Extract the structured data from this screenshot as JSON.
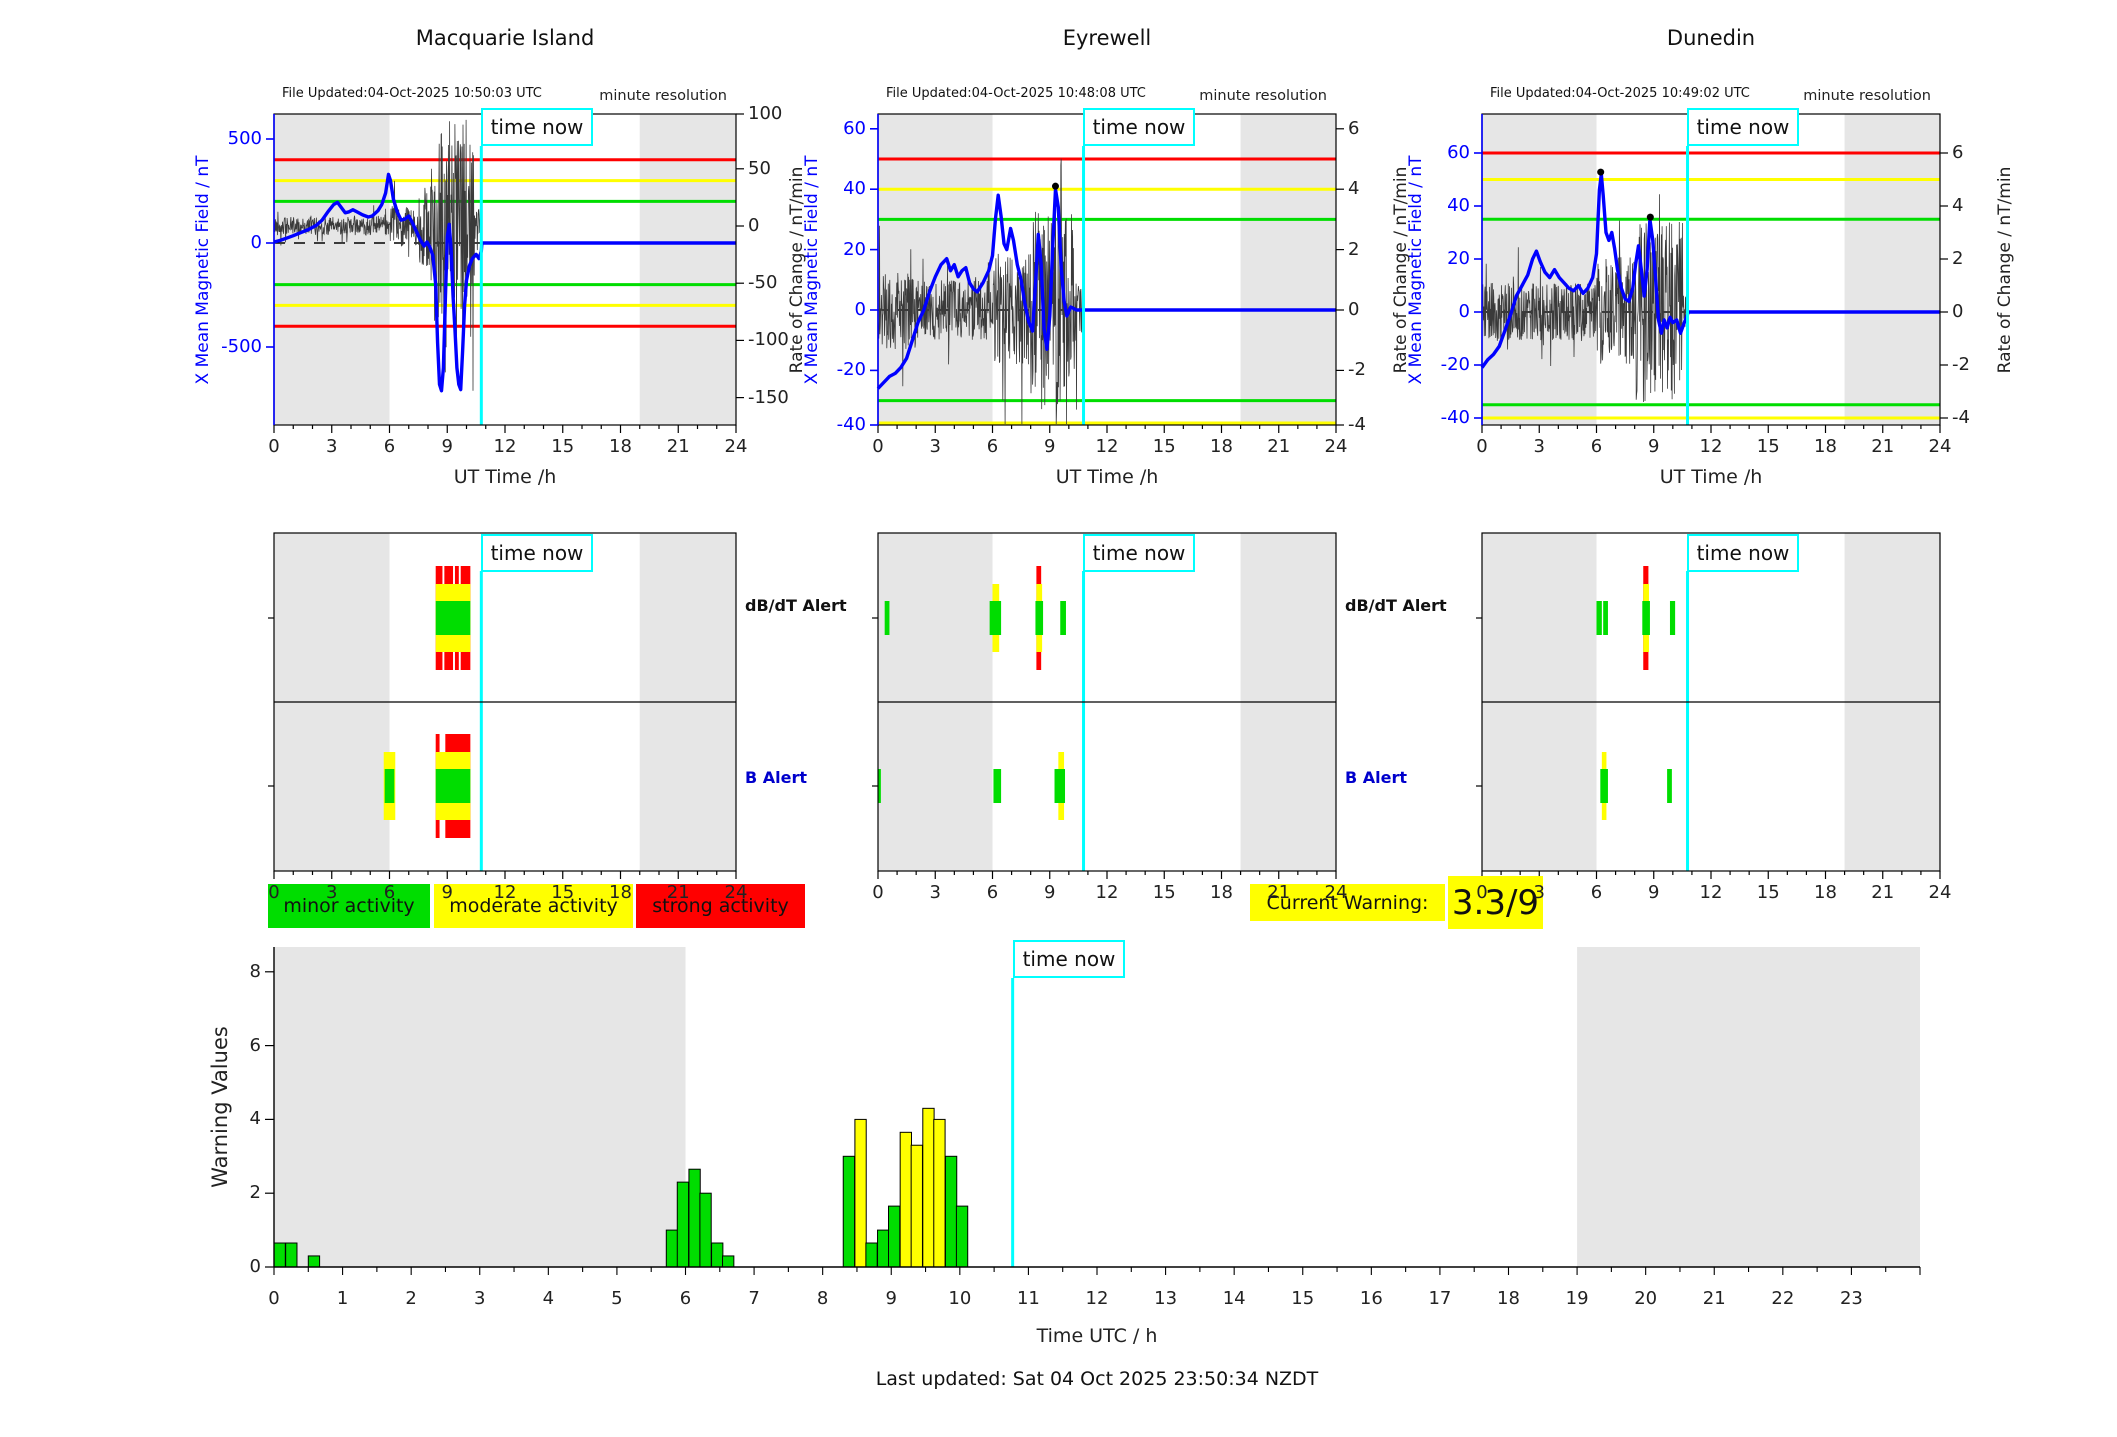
{
  "ui": {
    "time_now": "time now",
    "dbdt_label": "dB/dT Alert",
    "b_label": "B Alert",
    "legend": [
      {
        "label": "minor activity",
        "color": "green"
      },
      {
        "label": "moderate activity",
        "color": "yellow"
      },
      {
        "label": "strong activity",
        "color": "red"
      }
    ],
    "current_warning": {
      "label": "Current Warning:",
      "value": "3.3/9"
    },
    "last_updated": "Last updated: Sat 04 Oct 2025 23:50:34 NZDT"
  },
  "colors": {
    "green": "#00dd00",
    "yellow": "#ffff00",
    "red": "#ff0000",
    "blue": "#0000ff",
    "cyan": "#00ffff",
    "gray": "#e6e6e6",
    "noise": "#3a3a3a"
  },
  "chart_data": [
    {
      "type": "line",
      "title": "Macquarie Island",
      "file_updated": "File Updated:04-Oct-2025 10:50:03 UTC",
      "note": "minute resolution",
      "xlabel": "UT Time /h",
      "ylabel_left": "X Mean Magnetic Field / nT",
      "ylabel_right": "Rate of Change / nT/min",
      "xticks": [
        0,
        3,
        6,
        9,
        12,
        15,
        18,
        21,
        24
      ],
      "left_ticks": [
        500,
        0,
        -500
      ],
      "right_ticks": [
        100,
        50,
        0,
        -50,
        -100,
        -150
      ],
      "thresholds": [
        {
          "value": 400,
          "color": "red"
        },
        {
          "value": 300,
          "color": "yellow"
        },
        {
          "value": 200,
          "color": "green"
        },
        {
          "value": -200,
          "color": "green"
        },
        {
          "value": -300,
          "color": "yellow"
        },
        {
          "value": -400,
          "color": "red"
        }
      ],
      "gray_bands": [
        [
          0,
          6
        ],
        [
          19,
          24
        ]
      ],
      "time_now": 10.77,
      "series": [
        [
          0,
          5
        ],
        [
          0.3,
          12
        ],
        [
          0.7,
          25
        ],
        [
          1,
          35
        ],
        [
          1.4,
          50
        ],
        [
          1.8,
          65
        ],
        [
          2.2,
          85
        ],
        [
          2.5,
          110
        ],
        [
          2.8,
          150
        ],
        [
          3.1,
          185
        ],
        [
          3.3,
          195
        ],
        [
          3.5,
          170
        ],
        [
          3.7,
          145
        ],
        [
          3.9,
          150
        ],
        [
          4.1,
          160
        ],
        [
          4.3,
          150
        ],
        [
          4.6,
          135
        ],
        [
          4.9,
          125
        ],
        [
          5.1,
          130
        ],
        [
          5.4,
          155
        ],
        [
          5.6,
          185
        ],
        [
          5.8,
          240
        ],
        [
          5.95,
          330
        ],
        [
          6.05,
          300
        ],
        [
          6.2,
          210
        ],
        [
          6.4,
          150
        ],
        [
          6.6,
          110
        ],
        [
          6.8,
          115
        ],
        [
          7,
          130
        ],
        [
          7.2,
          95
        ],
        [
          7.4,
          55
        ],
        [
          7.6,
          15
        ],
        [
          7.8,
          -15
        ],
        [
          7.95,
          5
        ],
        [
          8.1,
          -20
        ],
        [
          8.25,
          -60
        ],
        [
          8.4,
          -200
        ],
        [
          8.5,
          -480
        ],
        [
          8.6,
          -680
        ],
        [
          8.7,
          -710
        ],
        [
          8.8,
          -600
        ],
        [
          8.9,
          -280
        ],
        [
          9,
          30
        ],
        [
          9.1,
          90
        ],
        [
          9.2,
          -30
        ],
        [
          9.3,
          -250
        ],
        [
          9.4,
          -420
        ],
        [
          9.5,
          -600
        ],
        [
          9.6,
          -680
        ],
        [
          9.7,
          -705
        ],
        [
          9.8,
          -520
        ],
        [
          9.9,
          -300
        ],
        [
          10,
          -180
        ],
        [
          10.15,
          -110
        ],
        [
          10.3,
          -75
        ],
        [
          10.5,
          -55
        ],
        [
          10.65,
          -75
        ],
        [
          10.77,
          -40
        ],
        [
          10.8,
          0
        ],
        [
          24,
          0
        ]
      ],
      "noise_env": [
        [
          0,
          6,
          8
        ],
        [
          6,
          7.5,
          18
        ],
        [
          7.5,
          8.3,
          35
        ],
        [
          8.3,
          10.4,
          95
        ],
        [
          10.4,
          10.77,
          15
        ]
      ],
      "dots": [],
      "alerts": {
        "dbdt": {
          "red": [
            [
              8.4,
              8.75
            ],
            [
              8.85,
              9.3
            ],
            [
              9.4,
              9.6
            ],
            [
              9.7,
              10.2
            ]
          ],
          "yellow": [
            [
              8.4,
              10.2
            ]
          ],
          "green": [
            [
              8.4,
              10.2
            ]
          ]
        },
        "b": {
          "red": [
            [
              8.4,
              8.6
            ],
            [
              8.9,
              10.2
            ]
          ],
          "yellow": [
            [
              5.7,
              6.3
            ],
            [
              8.4,
              10.2
            ]
          ],
          "green": [
            [
              5.75,
              6.25
            ],
            [
              8.4,
              10.2
            ]
          ]
        }
      }
    },
    {
      "type": "line",
      "title": "Eyrewell",
      "file_updated": "File Updated:04-Oct-2025 10:48:08 UTC",
      "note": "minute resolution",
      "xlabel": "UT Time /h",
      "ylabel_left": "X Mean Magnetic Field / nT",
      "ylabel_right": "Rate of Change / nT/min",
      "xticks": [
        0,
        3,
        6,
        9,
        12,
        15,
        18,
        21,
        24
      ],
      "left_ticks": [
        60,
        40,
        20,
        0,
        -20,
        -40
      ],
      "right_ticks": [
        6,
        4,
        2,
        0,
        -2,
        -4
      ],
      "thresholds": [
        {
          "value": 50,
          "color": "red"
        },
        {
          "value": 40,
          "color": "yellow"
        },
        {
          "value": 30,
          "color": "green"
        },
        {
          "value": -30,
          "color": "green"
        },
        {
          "value": -40,
          "color": "yellow"
        }
      ],
      "gray_bands": [
        [
          0,
          6
        ],
        [
          19,
          24
        ]
      ],
      "time_now": 10.77,
      "series": [
        [
          0,
          -26
        ],
        [
          0.3,
          -24
        ],
        [
          0.6,
          -22
        ],
        [
          0.9,
          -21
        ],
        [
          1.2,
          -19
        ],
        [
          1.5,
          -16
        ],
        [
          1.8,
          -10
        ],
        [
          2.1,
          -4
        ],
        [
          2.4,
          0
        ],
        [
          2.7,
          6
        ],
        [
          3,
          11
        ],
        [
          3.3,
          15
        ],
        [
          3.6,
          17
        ],
        [
          3.8,
          13
        ],
        [
          4,
          15
        ],
        [
          4.2,
          11
        ],
        [
          4.4,
          13
        ],
        [
          4.6,
          14
        ],
        [
          4.8,
          9
        ],
        [
          5,
          7
        ],
        [
          5.2,
          6
        ],
        [
          5.5,
          9
        ],
        [
          5.8,
          13
        ],
        [
          6,
          18
        ],
        [
          6.15,
          30
        ],
        [
          6.3,
          38
        ],
        [
          6.45,
          31
        ],
        [
          6.6,
          22
        ],
        [
          6.75,
          20
        ],
        [
          6.95,
          27
        ],
        [
          7.1,
          23
        ],
        [
          7.3,
          15
        ],
        [
          7.5,
          10
        ],
        [
          7.7,
          2
        ],
        [
          7.9,
          -4
        ],
        [
          8.1,
          -7
        ],
        [
          8.25,
          8
        ],
        [
          8.4,
          25
        ],
        [
          8.55,
          15
        ],
        [
          8.7,
          -6
        ],
        [
          8.85,
          -13
        ],
        [
          9,
          -2
        ],
        [
          9.15,
          20
        ],
        [
          9.3,
          40
        ],
        [
          9.45,
          34
        ],
        [
          9.6,
          14
        ],
        [
          9.75,
          3
        ],
        [
          9.9,
          -2
        ],
        [
          10.1,
          1
        ],
        [
          10.4,
          0
        ],
        [
          24,
          0
        ]
      ],
      "noise_env": [
        [
          0,
          2,
          1.3
        ],
        [
          2,
          6,
          1.0
        ],
        [
          6,
          8,
          1.9
        ],
        [
          8,
          10.4,
          3.3
        ],
        [
          10.4,
          10.77,
          0.8
        ]
      ],
      "dots": [
        [
          9.3,
          41
        ]
      ],
      "alerts": {
        "dbdt": {
          "red": [
            [
              8.3,
              8.55
            ]
          ],
          "yellow": [
            [
              6.0,
              6.35
            ],
            [
              8.3,
              8.6
            ]
          ],
          "green": [
            [
              0.35,
              0.6
            ],
            [
              5.85,
              6.45
            ],
            [
              8.25,
              8.65
            ],
            [
              9.55,
              9.85
            ]
          ]
        },
        "b": {
          "red": [],
          "yellow": [
            [
              9.45,
              9.75
            ]
          ],
          "green": [
            [
              0.0,
              0.15
            ],
            [
              6.05,
              6.45
            ],
            [
              9.25,
              9.8
            ]
          ]
        }
      }
    },
    {
      "type": "line",
      "title": "Dunedin",
      "file_updated": "File Updated:04-Oct-2025 10:49:02 UTC",
      "note": "minute resolution",
      "xlabel": "UT Time /h",
      "ylabel_left": "X Mean Magnetic Field / nT",
      "ylabel_right": "Rate of Change / nT/min",
      "xticks": [
        0,
        3,
        6,
        9,
        12,
        15,
        18,
        21,
        24
      ],
      "left_ticks": [
        60,
        40,
        20,
        0,
        -20,
        -40
      ],
      "right_ticks": [
        6,
        4,
        2,
        0,
        -2,
        -4
      ],
      "thresholds": [
        {
          "value": 60,
          "color": "red"
        },
        {
          "value": 50,
          "color": "yellow"
        },
        {
          "value": 35,
          "color": "green"
        },
        {
          "value": -35,
          "color": "green"
        },
        {
          "value": -40,
          "color": "yellow"
        }
      ],
      "gray_bands": [
        [
          0,
          6
        ],
        [
          19,
          24
        ]
      ],
      "time_now": 10.77,
      "series": [
        [
          0,
          -21
        ],
        [
          0.3,
          -18
        ],
        [
          0.6,
          -16
        ],
        [
          0.9,
          -13
        ],
        [
          1.2,
          -7
        ],
        [
          1.5,
          -1
        ],
        [
          1.8,
          6
        ],
        [
          2.1,
          10
        ],
        [
          2.4,
          14
        ],
        [
          2.65,
          20
        ],
        [
          2.85,
          23
        ],
        [
          3.05,
          19
        ],
        [
          3.3,
          15
        ],
        [
          3.55,
          13
        ],
        [
          3.8,
          16
        ],
        [
          4.05,
          13
        ],
        [
          4.3,
          11
        ],
        [
          4.55,
          9
        ],
        [
          4.8,
          8
        ],
        [
          5.05,
          10
        ],
        [
          5.3,
          7
        ],
        [
          5.55,
          9
        ],
        [
          5.8,
          13
        ],
        [
          6,
          22
        ],
        [
          6.15,
          46
        ],
        [
          6.25,
          52
        ],
        [
          6.35,
          44
        ],
        [
          6.5,
          30
        ],
        [
          6.65,
          27
        ],
        [
          6.8,
          30
        ],
        [
          6.95,
          24
        ],
        [
          7.1,
          16
        ],
        [
          7.3,
          9
        ],
        [
          7.5,
          5
        ],
        [
          7.7,
          4
        ],
        [
          7.9,
          9
        ],
        [
          8.05,
          18
        ],
        [
          8.2,
          25
        ],
        [
          8.35,
          16
        ],
        [
          8.5,
          6
        ],
        [
          8.65,
          16
        ],
        [
          8.8,
          35
        ],
        [
          8.95,
          27
        ],
        [
          9.1,
          12
        ],
        [
          9.25,
          -3
        ],
        [
          9.4,
          -8
        ],
        [
          9.55,
          -3
        ],
        [
          9.7,
          -6
        ],
        [
          9.85,
          -2
        ],
        [
          10,
          -4
        ],
        [
          10.2,
          -3
        ],
        [
          10.4,
          -8
        ],
        [
          10.6,
          -4
        ],
        [
          10.77,
          -1
        ],
        [
          10.8,
          0
        ],
        [
          24,
          0
        ]
      ],
      "noise_env": [
        [
          0,
          6,
          1.1
        ],
        [
          6,
          8,
          2.1
        ],
        [
          8,
          10.5,
          3.4
        ],
        [
          10.5,
          10.77,
          0.8
        ]
      ],
      "dots": [
        [
          6.22,
          52.8
        ],
        [
          8.82,
          35.8
        ]
      ],
      "alerts": {
        "dbdt": {
          "red": [
            [
              8.45,
              8.72
            ]
          ],
          "yellow": [
            [
              8.45,
              8.75
            ]
          ],
          "green": [
            [
              6.0,
              6.28
            ],
            [
              6.35,
              6.6
            ],
            [
              8.4,
              8.8
            ],
            [
              9.85,
              10.12
            ]
          ]
        },
        "b": {
          "red": [],
          "yellow": [
            [
              6.28,
              6.52
            ]
          ],
          "green": [
            [
              6.2,
              6.6
            ],
            [
              9.7,
              9.95
            ]
          ]
        }
      }
    },
    {
      "type": "bar",
      "title": "Warning Values",
      "ylabel": "Warning Values",
      "xlabel": "Time UTC / h",
      "yticks": [
        0,
        2,
        4,
        6,
        8
      ],
      "xticks": [
        0,
        1,
        2,
        3,
        4,
        5,
        6,
        7,
        8,
        9,
        10,
        11,
        12,
        13,
        14,
        15,
        16,
        17,
        18,
        19,
        20,
        21,
        22,
        23
      ],
      "ylim": [
        0,
        8.7
      ],
      "bar_width": 0.165,
      "time_now": 10.77,
      "gray_bands": [
        [
          0,
          6
        ],
        [
          19,
          24
        ]
      ],
      "bars": [
        {
          "x": 0.0,
          "h": 0.65,
          "color": "green"
        },
        {
          "x": 0.17,
          "h": 0.65,
          "color": "green"
        },
        {
          "x": 0.5,
          "h": 0.3,
          "color": "green"
        },
        {
          "x": 5.72,
          "h": 1.0,
          "color": "green"
        },
        {
          "x": 5.88,
          "h": 2.3,
          "color": "green"
        },
        {
          "x": 6.05,
          "h": 2.65,
          "color": "green"
        },
        {
          "x": 6.21,
          "h": 2.0,
          "color": "green"
        },
        {
          "x": 6.38,
          "h": 0.65,
          "color": "green"
        },
        {
          "x": 6.54,
          "h": 0.3,
          "color": "green"
        },
        {
          "x": 8.3,
          "h": 3.0,
          "color": "green"
        },
        {
          "x": 8.47,
          "h": 4.0,
          "color": "yellow"
        },
        {
          "x": 8.63,
          "h": 0.65,
          "color": "green"
        },
        {
          "x": 8.8,
          "h": 1.0,
          "color": "green"
        },
        {
          "x": 8.96,
          "h": 1.65,
          "color": "green"
        },
        {
          "x": 9.13,
          "h": 3.65,
          "color": "yellow"
        },
        {
          "x": 9.29,
          "h": 3.3,
          "color": "yellow"
        },
        {
          "x": 9.46,
          "h": 4.3,
          "color": "yellow"
        },
        {
          "x": 9.62,
          "h": 4.0,
          "color": "yellow"
        },
        {
          "x": 9.79,
          "h": 3.0,
          "color": "green"
        },
        {
          "x": 9.95,
          "h": 1.65,
          "color": "green"
        }
      ]
    }
  ]
}
